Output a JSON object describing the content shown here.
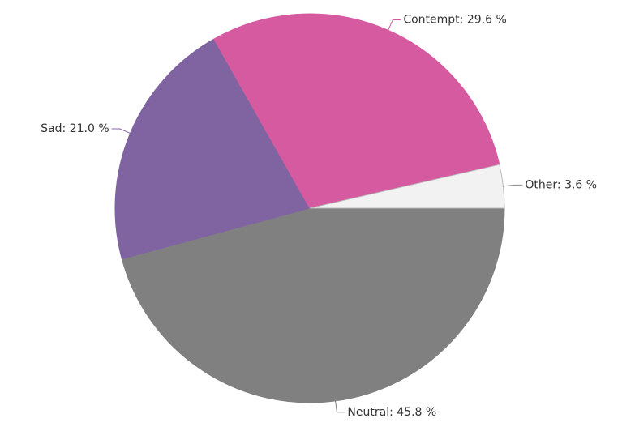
{
  "chart_data": {
    "type": "pie",
    "categories": [
      "Neutral",
      "Sad",
      "Contempt",
      "Other"
    ],
    "values": [
      45.8,
      21.0,
      29.6,
      3.6
    ],
    "value_labels": [
      "45.8 %",
      "21.0 %",
      "29.6 %",
      "3.6 %"
    ],
    "label_separator": ": ",
    "colors": [
      "#808080",
      "#8064a2",
      "#d65aa0",
      "#f2f2f2"
    ]
  }
}
